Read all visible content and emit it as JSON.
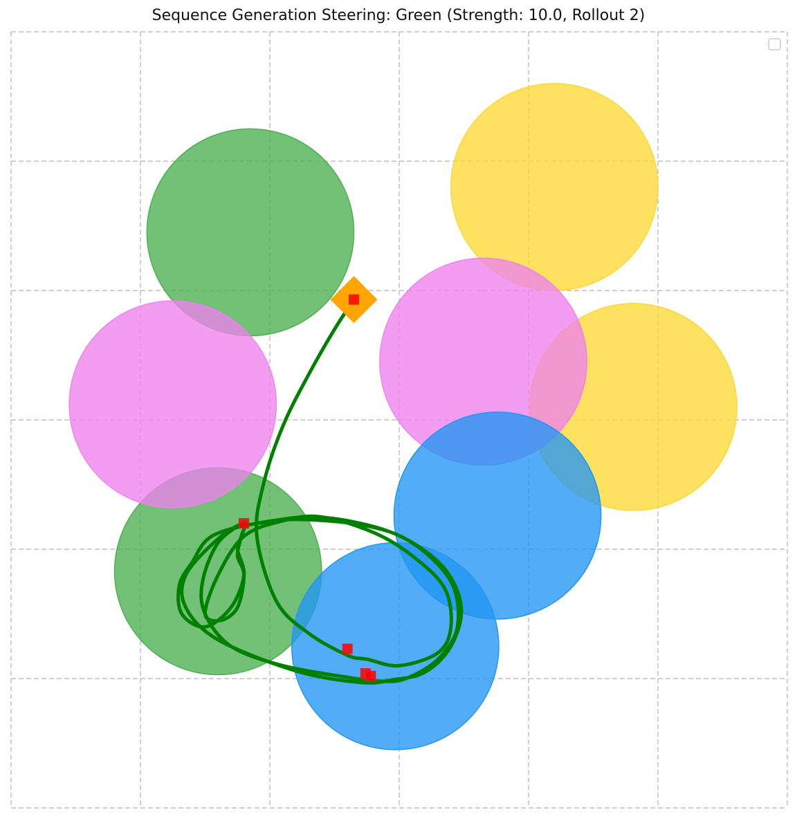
{
  "chart_data": {
    "type": "scatter",
    "title": "Sequence Generation Steering: Green (Strength: 10.0, Rollout 2)",
    "xlabel": "",
    "ylabel": "",
    "xlim": [
      0,
      6
    ],
    "ylim": [
      0,
      6
    ],
    "grid": true,
    "legend": "top-right (empty)",
    "circle_radius": 0.8,
    "circles": [
      {
        "name": "green-circle-1",
        "x": 1.85,
        "y": 4.45,
        "color": "#4caf50"
      },
      {
        "name": "green-circle-2",
        "x": 1.6,
        "y": 1.83,
        "color": "#4caf50"
      },
      {
        "name": "yellow-circle-1",
        "x": 4.2,
        "y": 4.8,
        "color": "#fdd835"
      },
      {
        "name": "yellow-circle-2",
        "x": 4.81,
        "y": 3.1,
        "color": "#fdd835"
      },
      {
        "name": "pink-circle-1",
        "x": 1.25,
        "y": 3.12,
        "color": "#ee82ee"
      },
      {
        "name": "pink-circle-2",
        "x": 3.65,
        "y": 3.45,
        "color": "#ee82ee"
      },
      {
        "name": "blue-circle-1",
        "x": 3.76,
        "y": 2.26,
        "color": "#2196f3"
      },
      {
        "name": "blue-circle-2",
        "x": 2.97,
        "y": 1.25,
        "color": "#2196f3"
      }
    ],
    "start_marker": {
      "x": 2.65,
      "y": 3.93,
      "shape": "diamond",
      "color": "#ffa500"
    },
    "trajectory": {
      "color": "#008000",
      "points": [
        [
          2.65,
          3.93
        ],
        [
          2.5,
          3.7
        ],
        [
          2.3,
          3.35
        ],
        [
          2.1,
          2.95
        ],
        [
          1.95,
          2.5
        ],
        [
          1.9,
          2.1
        ],
        [
          2.05,
          1.6
        ],
        [
          2.3,
          1.35
        ],
        [
          2.6,
          1.18
        ],
        [
          2.75,
          1.15
        ],
        [
          3.0,
          1.1
        ],
        [
          3.3,
          1.2
        ],
        [
          3.4,
          1.4
        ],
        [
          3.35,
          1.7
        ],
        [
          3.1,
          1.95
        ],
        [
          2.8,
          2.13
        ],
        [
          2.4,
          2.25
        ],
        [
          2.1,
          2.22
        ],
        [
          1.8,
          2.1
        ],
        [
          1.6,
          1.8
        ],
        [
          1.5,
          1.5
        ],
        [
          1.62,
          1.45
        ],
        [
          1.75,
          1.55
        ],
        [
          1.8,
          1.8
        ],
        [
          1.75,
          1.95
        ],
        [
          1.78,
          2.1
        ],
        [
          1.8,
          2.2
        ],
        [
          1.6,
          2.05
        ],
        [
          1.48,
          1.75
        ],
        [
          1.5,
          1.5
        ],
        [
          1.7,
          1.25
        ],
        [
          2.1,
          1.1
        ],
        [
          2.6,
          1.01
        ],
        [
          2.85,
          0.98
        ],
        [
          3.05,
          1.0
        ],
        [
          3.3,
          1.15
        ],
        [
          3.45,
          1.4
        ],
        [
          3.4,
          1.75
        ],
        [
          3.1,
          2.05
        ],
        [
          2.75,
          2.18
        ],
        [
          2.25,
          2.23
        ],
        [
          1.9,
          2.2
        ],
        [
          1.55,
          2.1
        ],
        [
          1.4,
          1.9
        ],
        [
          1.3,
          1.72
        ],
        [
          1.32,
          1.5
        ],
        [
          1.5,
          1.4
        ],
        [
          1.7,
          1.55
        ],
        [
          1.8,
          1.8
        ],
        [
          1.75,
          2.0
        ],
        [
          1.78,
          2.1
        ],
        [
          1.8,
          2.2
        ],
        [
          1.6,
          2.08
        ],
        [
          1.35,
          1.8
        ],
        [
          1.35,
          1.55
        ],
        [
          1.6,
          1.3
        ],
        [
          2.2,
          1.06
        ],
        [
          2.7,
          0.97
        ],
        [
          2.95,
          0.99
        ],
        [
          3.2,
          1.05
        ],
        [
          3.4,
          1.25
        ],
        [
          3.48,
          1.55
        ],
        [
          3.35,
          1.85
        ],
        [
          3.05,
          2.08
        ],
        [
          2.7,
          2.2
        ],
        [
          2.3,
          2.25
        ],
        [
          1.9,
          2.2
        ]
      ]
    },
    "waypoints": [
      {
        "x": 2.65,
        "y": 3.93
      },
      {
        "x": 1.8,
        "y": 2.2
      },
      {
        "x": 2.6,
        "y": 1.23
      },
      {
        "x": 2.74,
        "y": 1.04
      },
      {
        "x": 2.78,
        "y": 1.02
      }
    ]
  }
}
